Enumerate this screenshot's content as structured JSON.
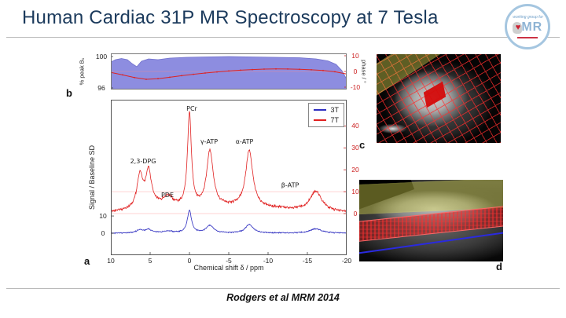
{
  "slide": {
    "title": "Human Cardiac 31P MR Spectroscopy at 7 Tesla",
    "title_color": "#1b3a5c",
    "footer": "Rodgers et al MRM 2014"
  },
  "logo": {
    "tagline": "working group for",
    "letters": "MR"
  },
  "figures": {
    "c_label": "c",
    "d_label": "d",
    "overlay_colors": {
      "grid": "#ff2d2d",
      "band": "#d9d94f",
      "line": "#2a2ae0",
      "voxel": "#d40b0b"
    }
  },
  "chart_data": [
    {
      "id": "b1-phase-profile",
      "type": "area",
      "panel_label": "b",
      "left_axis": {
        "label": "% peak B₁",
        "ticks": [
          100,
          96
        ],
        "lim": [
          95.8,
          100.4
        ]
      },
      "right_axis": {
        "label": "phase / °",
        "ticks": [
          10,
          0,
          -10
        ],
        "lim": [
          -11.5,
          11.5
        ],
        "color": "#cc2222"
      },
      "area_series": {
        "name": "% peak B1",
        "color": "#8d8de0",
        "x": [
          0,
          0.02,
          0.045,
          0.07,
          0.09,
          0.11,
          0.13,
          0.16,
          0.2,
          0.25,
          0.32,
          0.4,
          0.5,
          0.6,
          0.7,
          0.8,
          0.87,
          0.92,
          0.955,
          0.98,
          1.0
        ],
        "y": [
          99.3,
          99.6,
          99.75,
          99.6,
          99.1,
          98.7,
          99.4,
          99.7,
          99.6,
          99.8,
          99.9,
          99.95,
          100.0,
          99.95,
          99.9,
          99.85,
          99.7,
          99.45,
          99.0,
          98.2,
          97.1
        ]
      },
      "line_series": {
        "name": "phase",
        "color": "#dd2222",
        "x": [
          0,
          0.05,
          0.1,
          0.15,
          0.2,
          0.25,
          0.3,
          0.35,
          0.4,
          0.45,
          0.5,
          0.55,
          0.6,
          0.65,
          0.7,
          0.75,
          0.8,
          0.85,
          0.9,
          0.95,
          1.0
        ],
        "y": [
          -0.6,
          -2.2,
          -3.9,
          -5.0,
          -4.6,
          -3.7,
          -2.7,
          -1.8,
          -1.0,
          -0.3,
          0.3,
          0.8,
          1.2,
          1.5,
          1.6,
          1.55,
          1.35,
          1.05,
          0.6,
          -0.2,
          -1.6
        ]
      }
    },
    {
      "id": "cardiac-31p-spectra",
      "type": "line",
      "panel_label": "a",
      "xlabel": "Chemical shift δ / ppm",
      "ylabel": "Signal / Baseline SD",
      "x_lim": [
        10,
        -20
      ],
      "x_ticks": [
        10,
        5,
        0,
        -5,
        -10,
        -15,
        -20
      ],
      "left_axis": {
        "ticks": [
          10,
          0
        ],
        "lim": [
          -12.7,
          77.3
        ]
      },
      "right_axis": {
        "ticks": [
          40,
          30,
          20,
          10,
          0
        ],
        "lim": [
          -19,
          52
        ],
        "color": "#cc2222",
        "guide_values": [
          0,
          10
        ]
      },
      "legend": [
        {
          "label": "3T",
          "color": "#2f2fc0"
        },
        {
          "label": "7T",
          "color": "#e02020"
        }
      ],
      "series": [
        {
          "name": "3T",
          "axis": "left",
          "color": "#2f2fc0",
          "noise": 0.45,
          "peaks": [
            [
              6.3,
              1.8,
              0.5
            ],
            [
              5.2,
              2.0,
              0.5
            ],
            [
              2.7,
              1.2,
              0.7
            ],
            [
              0,
              13,
              0.32
            ],
            [
              -2.6,
              4.5,
              0.55
            ],
            [
              -7.6,
              5,
              0.6
            ],
            [
              -16.1,
              2.5,
              0.9
            ]
          ]
        },
        {
          "name": "7T",
          "axis": "right",
          "color": "#e02020",
          "noise": 0.8,
          "peaks": [
            [
              6.3,
              15,
              0.45
            ],
            [
              5.2,
              16,
              0.45
            ],
            [
              2.7,
              4.5,
              0.7
            ],
            [
              0,
              43,
              0.3
            ],
            [
              -2.6,
              26,
              0.5
            ],
            [
              -7.6,
              26,
              0.55
            ],
            [
              -16.1,
              9,
              0.9
            ],
            [
              3.8,
              2.5,
              3
            ],
            [
              -4.8,
              2,
              4
            ],
            [
              -11,
              1.5,
              5
            ]
          ]
        }
      ],
      "annotations": [
        {
          "text": "2,3-DPG",
          "ppm": 5.9,
          "value": 23
        },
        {
          "text": "PDE",
          "ppm": 2.8,
          "value": 7.5
        },
        {
          "text": "PCr",
          "ppm": -0.3,
          "value": 47
        },
        {
          "text": "γ-ATP",
          "ppm": -2.5,
          "value": 32
        },
        {
          "text": "α-ATP",
          "ppm": -7.0,
          "value": 32
        },
        {
          "text": "β-ATP",
          "ppm": -12.8,
          "value": 12
        }
      ]
    }
  ]
}
